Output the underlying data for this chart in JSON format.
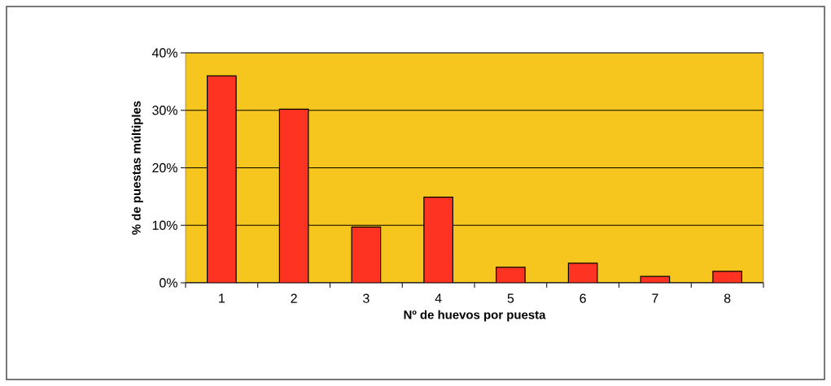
{
  "chart_data": {
    "type": "bar",
    "xlabel": "Nº de huevos por puesta",
    "ylabel": "% de puestas múltiples",
    "categories": [
      "1",
      "2",
      "3",
      "4",
      "5",
      "6",
      "7",
      "8"
    ],
    "values": [
      36.0,
      30.2,
      9.7,
      14.9,
      2.7,
      3.4,
      1.1,
      2.0
    ],
    "color": "#ff3322",
    "ylim": [
      0,
      40
    ],
    "yticks": [
      {
        "value": 0,
        "label": "0%"
      },
      {
        "value": 10,
        "label": "10%"
      },
      {
        "value": 20,
        "label": "20%"
      },
      {
        "value": 30,
        "label": "30%"
      },
      {
        "value": 40,
        "label": "40%"
      }
    ],
    "grid": "y"
  }
}
